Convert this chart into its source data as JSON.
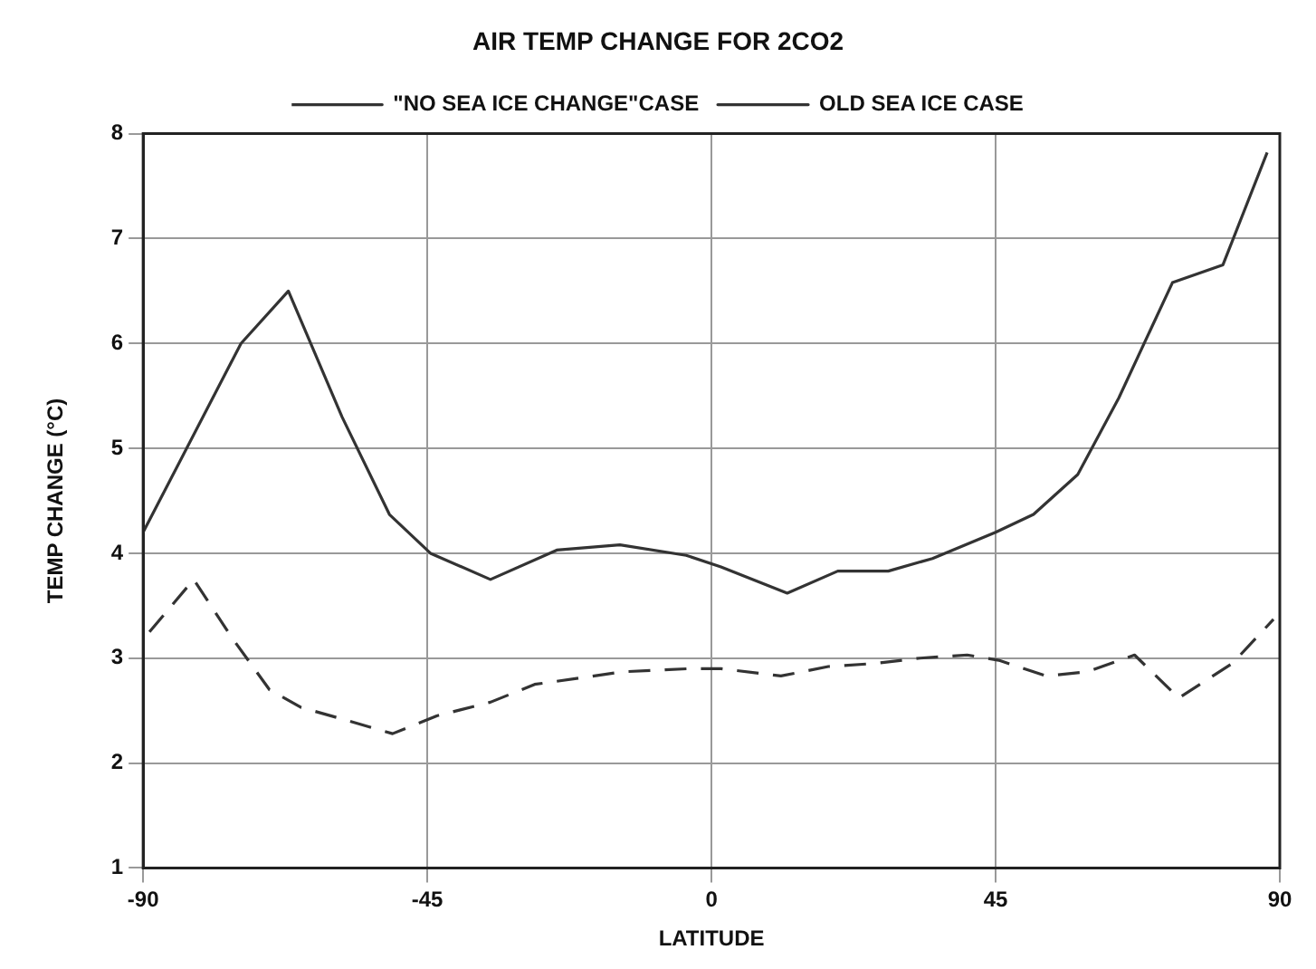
{
  "chart_data": {
    "type": "line",
    "title": "AIR TEMP CHANGE FOR 2CO2",
    "xlabel": "LATITUDE",
    "ylabel": "TEMP CHANGE (°C)",
    "xlim": [
      -90,
      90
    ],
    "xticks": [
      -90,
      -45,
      0,
      45,
      90
    ],
    "ylim": [
      1,
      8
    ],
    "yticks": [
      1,
      2,
      3,
      4,
      5,
      6,
      7,
      8
    ],
    "grid": true,
    "legend": "top",
    "marker": "none",
    "series": [
      {
        "name": "\"NO SEA ICE CHANGE\"CASE",
        "color": "#333333",
        "line_style": "dashed",
        "x": [
          -89,
          -82,
          -76,
          -70,
          -65,
          -58.5,
          -50.5,
          -43.5,
          -35,
          -28,
          -14,
          -3.5,
          1.5,
          11,
          18.5,
          26,
          33,
          40.5,
          45.5,
          53,
          59.5,
          67,
          74,
          82.5,
          89
        ],
        "values": [
          3.25,
          3.75,
          3.2,
          2.7,
          2.53,
          2.42,
          2.28,
          2.45,
          2.58,
          2.75,
          2.87,
          2.9,
          2.9,
          2.83,
          2.92,
          2.95,
          3.0,
          3.03,
          2.98,
          2.83,
          2.87,
          3.03,
          2.62,
          2.95,
          3.37
        ]
      },
      {
        "name": "OLD SEA ICE CASE",
        "color": "#333333",
        "line_style": "solid",
        "x": [
          -90,
          -74.5,
          -67,
          -58.5,
          -51,
          -44.5,
          -35,
          -24.5,
          -14.5,
          -4,
          1.5,
          12,
          20,
          28,
          35,
          45,
          51,
          58,
          64.5,
          73,
          81,
          88
        ],
        "values": [
          4.2,
          6.0,
          6.5,
          5.3,
          4.37,
          4.0,
          3.75,
          4.03,
          4.08,
          3.98,
          3.87,
          3.62,
          3.83,
          3.83,
          3.95,
          4.2,
          4.37,
          4.75,
          5.48,
          6.58,
          6.75,
          7.82
        ]
      }
    ]
  }
}
